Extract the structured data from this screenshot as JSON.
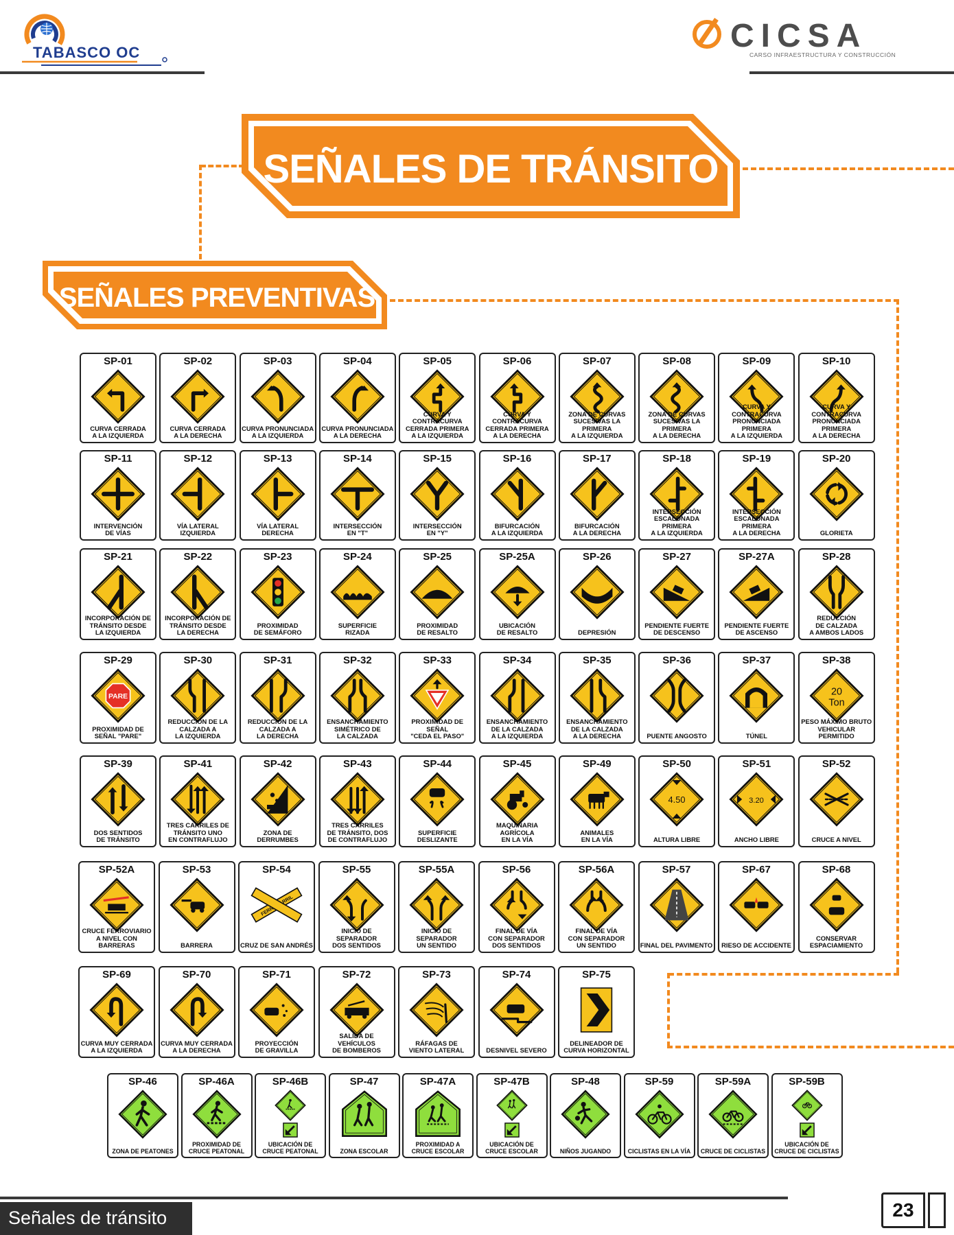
{
  "header": {
    "left_logo_text": "TABASCO OC",
    "right_logo_text": "CICSA",
    "right_logo_subtitle": "CARSO INFRAESTRUCTURA Y CONSTRUCCIÓN"
  },
  "main_banner": {
    "title": "SEÑALES DE TRÁNSITO"
  },
  "section_banner": {
    "title": "SEÑALES PREVENTIVAS"
  },
  "colors": {
    "orange": "#f28a1f",
    "sign_yellow": "#f6c21c",
    "sign_green": "#8fde3d",
    "dark": "#2f2f2f"
  },
  "rows": [
    {
      "signs": [
        {
          "code": "SP-01",
          "caption": "CURVA CERRADA\nA LA IZQUIERDA",
          "icon": "sharp-curve-left-icon"
        },
        {
          "code": "SP-02",
          "caption": "CURVA CERRADA\nA LA DERECHA",
          "icon": "sharp-curve-right-icon"
        },
        {
          "code": "SP-03",
          "caption": "CURVA PRONUNCIADA\nA LA IZQUIERDA",
          "icon": "curve-left-icon"
        },
        {
          "code": "SP-04",
          "caption": "CURVA PRONUNCIADA\nA LA DERECHA",
          "icon": "curve-right-icon"
        },
        {
          "code": "SP-05",
          "caption": "CURVA Y CONTRACURVA\nCERRADA PRIMERA\nA LA IZQUIERDA",
          "icon": "reverse-curve-left-icon"
        },
        {
          "code": "SP-06",
          "caption": "CURVA Y CONTRACURVA\nCERRADA PRIMERA\nA LA DERECHA",
          "icon": "reverse-curve-right-icon"
        },
        {
          "code": "SP-07",
          "caption": "ZONA DE CURVAS\nSUCESIVAS LA PRIMERA\nA LA IZQUIERDA",
          "icon": "winding-road-left-icon"
        },
        {
          "code": "SP-08",
          "caption": "ZONA DE CURVAS\nSUCESIVAS LA PRIMERA\nA LA DERECHA",
          "icon": "winding-road-right-icon"
        },
        {
          "code": "SP-09",
          "caption": "CURVA Y CONTRACURVA\nPRONUNCIADA PRIMERA\nA LA IZQUIERDA",
          "icon": "reverse-turn-left-icon"
        },
        {
          "code": "SP-10",
          "caption": "CURVA Y CONTRACURVA\nPRONUNCIADA PRIMERA\nA LA DERECHA",
          "icon": "reverse-turn-right-icon"
        }
      ]
    },
    {
      "signs": [
        {
          "code": "SP-11",
          "caption": "INTERVENCIÓN\nDE VÍAS",
          "icon": "crossroad-icon"
        },
        {
          "code": "SP-12",
          "caption": "VÍA LATERAL\nIZQUIERDA",
          "icon": "side-road-left-icon"
        },
        {
          "code": "SP-13",
          "caption": "VÍA LATERAL\nDERECHA",
          "icon": "side-road-right-icon"
        },
        {
          "code": "SP-14",
          "caption": "INTERSECCIÓN\nEN \"T\"",
          "icon": "t-intersection-icon"
        },
        {
          "code": "SP-15",
          "caption": "INTERSECCIÓN\nEN \"Y\"",
          "icon": "y-intersection-icon"
        },
        {
          "code": "SP-16",
          "caption": "BIFURCACIÓN\nA LA IZQUIERDA",
          "icon": "fork-left-icon"
        },
        {
          "code": "SP-17",
          "caption": "BIFURCACIÓN\nA LA DERECHA",
          "icon": "fork-right-icon"
        },
        {
          "code": "SP-18",
          "caption": "INTERSECCIÓN\nESCALONADA PRIMERA\nA LA IZQUIERDA",
          "icon": "staggered-left-icon"
        },
        {
          "code": "SP-19",
          "caption": "INTERSECCIÓN\nESCALONADA PRIMERA\nA LA DERECHA",
          "icon": "staggered-right-icon"
        },
        {
          "code": "SP-20",
          "caption": "GLORIETA",
          "icon": "roundabout-icon"
        }
      ]
    },
    {
      "signs": [
        {
          "code": "SP-21",
          "caption": "INCORPORACIÓN DE\nTRÁNSITO DESDE\nLA IZQUIERDA",
          "icon": "merge-left-icon"
        },
        {
          "code": "SP-22",
          "caption": "INCORPORACIÓN DE\nTRÁNSITO DESDE\nLA DERECHA",
          "icon": "merge-right-icon"
        },
        {
          "code": "SP-23",
          "caption": "PROXIMIDAD\nDE SEMÁFORO",
          "icon": "traffic-light-icon"
        },
        {
          "code": "SP-24",
          "caption": "SUPERFICIE\nRIZADA",
          "icon": "bumpy-road-icon"
        },
        {
          "code": "SP-25",
          "caption": "PROXIMIDAD\nDE RESALTO",
          "icon": "speed-bump-icon"
        },
        {
          "code": "SP-25A",
          "caption": "UBICACIÓN\nDE RESALTO",
          "icon": "speed-bump-location-icon"
        },
        {
          "code": "SP-26",
          "caption": "DEPRESIÓN",
          "icon": "dip-icon"
        },
        {
          "code": "SP-27",
          "caption": "PENDIENTE FUERTE\nDE DESCENSO",
          "icon": "steep-descent-icon"
        },
        {
          "code": "SP-27A",
          "caption": "PENDIENTE FUERTE\nDE ASCENSO",
          "icon": "steep-ascent-icon"
        },
        {
          "code": "SP-28",
          "caption": "REDUCCIÓN\nDE CALZADA\nA AMBOS LADOS",
          "icon": "road-narrows-both-icon"
        }
      ]
    },
    {
      "signs": [
        {
          "code": "SP-29",
          "caption": "PROXIMIDAD DE\nSEÑAL \"PARE\"",
          "icon": "stop-ahead-icon",
          "text": "PARE"
        },
        {
          "code": "SP-30",
          "caption": "REDUCCIÓN DE LA\nCALZADA A\nLA IZQUIERDA",
          "icon": "narrow-left-icon"
        },
        {
          "code": "SP-31",
          "caption": "REDUCCIÓN DE LA\nCALZADA A\nLA DERECHA",
          "icon": "narrow-right-icon"
        },
        {
          "code": "SP-32",
          "caption": "ENSANCHAMIENTO\nSIMÉTRICO DE\nLA CALZADA",
          "icon": "road-widens-icon"
        },
        {
          "code": "SP-33",
          "caption": "PROXIMIDAD DE SEÑAL\n\"CEDA EL PASO\"",
          "icon": "yield-ahead-icon"
        },
        {
          "code": "SP-34",
          "caption": "ENSANCHAMIENTO\nDE LA CALZADA\nA LA IZQUIERDA",
          "icon": "widen-left-icon"
        },
        {
          "code": "SP-35",
          "caption": "ENSANCHAMIENTO\nDE LA CALZADA\nA LA DERECHA",
          "icon": "widen-right-icon"
        },
        {
          "code": "SP-36",
          "caption": "PUENTE ANGOSTO",
          "icon": "narrow-bridge-icon"
        },
        {
          "code": "SP-37",
          "caption": "TÚNEL",
          "icon": "tunnel-icon"
        },
        {
          "code": "SP-38",
          "caption": "PESO MÁXIMO BRUTO\nVEHICULAR PERMITIDO",
          "icon": "weight-limit-icon",
          "text": "20",
          "text2": "Ton"
        }
      ]
    },
    {
      "signs": [
        {
          "code": "SP-39",
          "caption": "DOS SENTIDOS\nDE TRÁNSITO",
          "icon": "two-way-icon"
        },
        {
          "code": "SP-41",
          "caption": "TRES CARRILES DE\nTRÁNSITO UNO\nEN CONTRAFLUJO",
          "icon": "three-lanes-one-icon"
        },
        {
          "code": "SP-42",
          "caption": "ZONA DE\nDERRUMBES",
          "icon": "falling-rocks-icon"
        },
        {
          "code": "SP-43",
          "caption": "TRES CARRILES\nDE TRÁNSITO, DOS\nDE CONTRAFLUJO",
          "icon": "three-lanes-two-icon"
        },
        {
          "code": "SP-44",
          "caption": "SUPERFICIE\nDESLIZANTE",
          "icon": "slippery-road-icon"
        },
        {
          "code": "SP-45",
          "caption": "MAQUINARIA AGRÍCOLA\nEN LA VÍA",
          "icon": "tractor-icon"
        },
        {
          "code": "SP-49",
          "caption": "ANIMALES\nEN LA VÍA",
          "icon": "cow-icon"
        },
        {
          "code": "SP-50",
          "caption": "ALTURA LIBRE",
          "icon": "height-limit-icon",
          "text": "4.50"
        },
        {
          "code": "SP-51",
          "caption": "ANCHO LIBRE",
          "icon": "width-limit-icon",
          "text": "3.20"
        },
        {
          "code": "SP-52",
          "caption": "CRUCE A NIVEL",
          "icon": "level-crossing-icon"
        }
      ]
    },
    {
      "signs": [
        {
          "code": "SP-52A",
          "caption": "CRUCE FERROVIARIO\nA NIVEL CON BARRERAS",
          "icon": "train-barrier-icon"
        },
        {
          "code": "SP-53",
          "caption": "BARRERA",
          "icon": "barrier-icon"
        },
        {
          "code": "SP-54",
          "caption": "CRUZ DE SAN ANDRÉS",
          "icon": "railroad-crossbuck-icon",
          "text": "FERROCARRIL"
        },
        {
          "code": "SP-55",
          "caption": "INICIO DE SEPARADOR\nDOS SENTIDOS",
          "icon": "divided-two-way-icon"
        },
        {
          "code": "SP-55A",
          "caption": "INICIO DE SEPARADOR\nUN SENTIDO",
          "icon": "divided-one-way-icon"
        },
        {
          "code": "SP-56",
          "caption": "FINAL DE VÍA\nCON SEPARADOR\nDOS SENTIDOS",
          "icon": "divided-ends-two-way-icon"
        },
        {
          "code": "SP-56A",
          "caption": "FINAL DE VÍA\nCON SEPARADOR\nUN SENTIDO",
          "icon": "divided-ends-one-way-icon"
        },
        {
          "code": "SP-57",
          "caption": "FINAL DEL PAVIMENTO",
          "icon": "pavement-ends-icon"
        },
        {
          "code": "SP-67",
          "caption": "RIESO DE ACCIDENTE",
          "icon": "accident-risk-icon"
        },
        {
          "code": "SP-68",
          "caption": "CONSERVAR\nESPACIAMIENTO",
          "icon": "keep-distance-icon"
        }
      ]
    },
    {
      "signs": [
        {
          "code": "SP-69",
          "caption": "CURVA MUY CERRADA\nA LA IZQUIERDA",
          "icon": "u-turn-left-icon"
        },
        {
          "code": "SP-70",
          "caption": "CURVA MUY CERRADA\nA LA DERECHA",
          "icon": "u-turn-right-icon"
        },
        {
          "code": "SP-71",
          "caption": "PROYECCIÓN\nDE GRAVILLA",
          "icon": "loose-gravel-icon"
        },
        {
          "code": "SP-72",
          "caption": "SALIDA DE VEHÍCULOS\nDE BOMBEROS",
          "icon": "fire-truck-icon"
        },
        {
          "code": "SP-73",
          "caption": "RÁFAGAS DE\nVIENTO LATERAL",
          "icon": "crosswind-icon"
        },
        {
          "code": "SP-74",
          "caption": "DESNIVEL SEVERO",
          "icon": "severe-drop-icon"
        },
        {
          "code": "SP-75",
          "caption": "DELINEADOR DE\nCURVA HORIZONTAL",
          "icon": "chevron-right-icon"
        }
      ]
    },
    {
      "signs": [
        {
          "code": "SP-46",
          "caption": "ZONA DE PEATONES",
          "icon": "pedestrian-icon"
        },
        {
          "code": "SP-46A",
          "caption": "PROXIMIDAD DE\nCRUCE PEATONAL",
          "icon": "pedestrian-crossing-icon"
        },
        {
          "code": "SP-46B",
          "caption": "UBICACIÓN DE\nCRUCE PEATONAL",
          "icon": "pedestrian-crossing-location-icon"
        },
        {
          "code": "SP-47",
          "caption": "ZONA ESCOLAR",
          "icon": "school-zone-icon"
        },
        {
          "code": "SP-47A",
          "caption": "PROXIMIDAD A\nCRUCE ESCOLAR",
          "icon": "school-crossing-icon"
        },
        {
          "code": "SP-47B",
          "caption": "UBICACIÓN DE\nCRUCE ESCOLAR",
          "icon": "school-crossing-location-icon"
        },
        {
          "code": "SP-48",
          "caption": "NIÑOS JUGANDO",
          "icon": "children-playing-icon"
        },
        {
          "code": "SP-59",
          "caption": "CICLISTAS EN LA VÍA",
          "icon": "cyclists-icon"
        },
        {
          "code": "SP-59A",
          "caption": "CRUCE DE CICLISTAS",
          "icon": "bicycle-crossing-icon"
        },
        {
          "code": "SP-59B",
          "caption": "UBICACIÓN DE\nCRUCE DE CICLISTAS",
          "icon": "bicycle-crossing-location-icon"
        }
      ]
    }
  ],
  "footer": {
    "title": "Señales de tránsito",
    "page_number": "23"
  }
}
